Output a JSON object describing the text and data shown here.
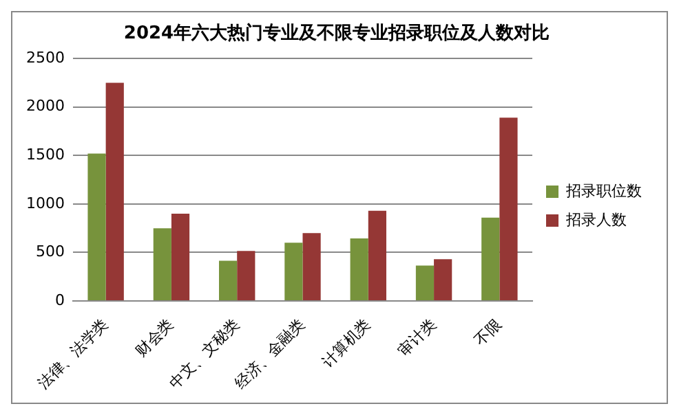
{
  "chart_data": {
    "type": "bar",
    "title": "2024年六大热门专业及不限专业招录职位及人数对比",
    "categories": [
      "法律、法学类",
      "财会类",
      "中文、文秘类",
      "经济、金融类",
      "计算机类",
      "审计类",
      "不限"
    ],
    "series": [
      {
        "name": "招录职位数",
        "color": "#77933c",
        "values": [
          1520,
          750,
          415,
          600,
          645,
          365,
          860
        ]
      },
      {
        "name": "招录人数",
        "color": "#953735",
        "values": [
          2250,
          900,
          515,
          700,
          930,
          430,
          1890
        ]
      }
    ],
    "ylim": [
      0,
      2500
    ],
    "yticks": [
      0,
      500,
      1000,
      1500,
      2000,
      2500
    ],
    "grid": "y",
    "legend": "right"
  }
}
